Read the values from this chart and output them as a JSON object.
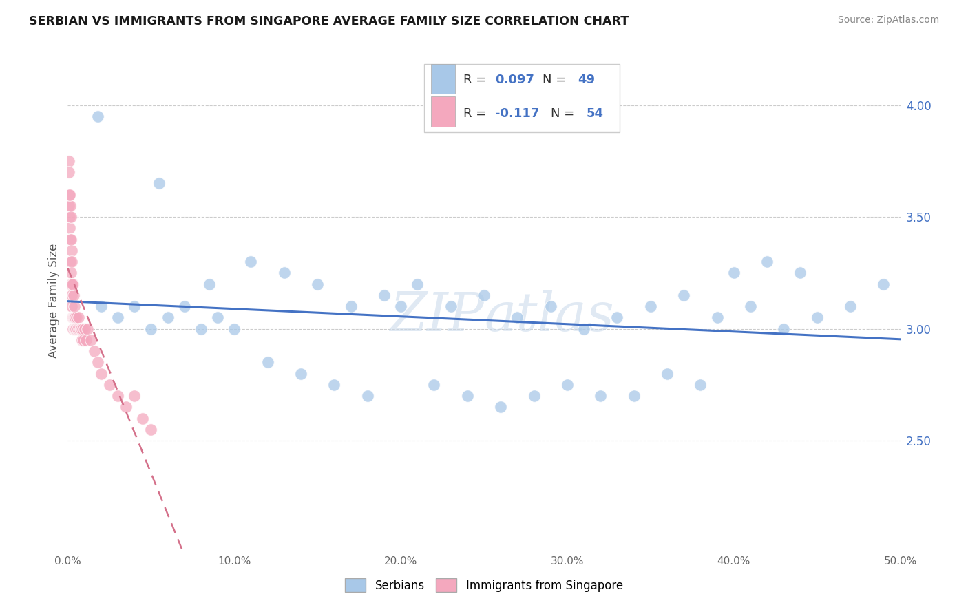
{
  "title": "SERBIAN VS IMMIGRANTS FROM SINGAPORE AVERAGE FAMILY SIZE CORRELATION CHART",
  "source": "Source: ZipAtlas.com",
  "ylabel": "Average Family Size",
  "right_yticks": [
    2.5,
    3.0,
    3.5,
    4.0
  ],
  "xlim": [
    0.0,
    50.0
  ],
  "ylim": [
    2.0,
    4.25
  ],
  "serbians_color": "#a8c8e8",
  "singapore_color": "#f4a8be",
  "trend_serbian_color": "#4472c4",
  "trend_singapore_color": "#d4708a",
  "watermark": "ZIPatlas",
  "serbian_x": [
    1.8,
    5.5,
    8.5,
    11.0,
    13.0,
    15.0,
    17.0,
    19.0,
    21.0,
    23.0,
    25.0,
    27.0,
    29.0,
    31.0,
    33.0,
    35.0,
    37.0,
    39.0,
    41.0,
    43.0,
    45.0,
    47.0,
    49.0,
    2.0,
    3.0,
    4.0,
    5.0,
    6.0,
    7.0,
    8.0,
    9.0,
    10.0,
    12.0,
    14.0,
    16.0,
    18.0,
    20.0,
    22.0,
    24.0,
    26.0,
    28.0,
    30.0,
    32.0,
    34.0,
    36.0,
    38.0,
    40.0,
    42.0,
    44.0
  ],
  "serbian_y": [
    3.95,
    3.65,
    3.2,
    3.3,
    3.25,
    3.2,
    3.1,
    3.15,
    3.2,
    3.1,
    3.15,
    3.05,
    3.1,
    3.0,
    3.05,
    3.1,
    3.15,
    3.05,
    3.1,
    3.0,
    3.05,
    3.1,
    3.2,
    3.1,
    3.05,
    3.1,
    3.0,
    3.05,
    3.1,
    3.0,
    3.05,
    3.0,
    2.85,
    2.8,
    2.75,
    2.7,
    3.1,
    2.75,
    2.7,
    2.65,
    2.7,
    2.75,
    2.7,
    2.7,
    2.8,
    2.75,
    3.25,
    3.3,
    3.25
  ],
  "singapore_x": [
    0.05,
    0.08,
    0.1,
    0.12,
    0.14,
    0.16,
    0.18,
    0.2,
    0.22,
    0.25,
    0.28,
    0.3,
    0.32,
    0.35,
    0.38,
    0.4,
    0.42,
    0.45,
    0.48,
    0.5,
    0.55,
    0.6,
    0.65,
    0.7,
    0.75,
    0.8,
    0.85,
    0.9,
    0.95,
    1.0,
    1.1,
    1.2,
    1.4,
    1.6,
    1.8,
    2.0,
    2.5,
    3.0,
    3.5,
    4.0,
    4.5,
    5.0,
    0.1,
    0.15,
    0.2,
    0.25,
    0.3,
    0.35,
    0.4,
    0.08,
    0.12,
    0.18,
    0.22,
    0.28
  ],
  "singapore_y": [
    3.75,
    3.55,
    3.5,
    3.45,
    3.4,
    3.3,
    3.25,
    3.2,
    3.15,
    3.1,
    3.05,
    3.05,
    3.0,
    3.05,
    3.0,
    3.05,
    3.0,
    3.05,
    3.0,
    3.05,
    3.0,
    3.0,
    3.05,
    3.0,
    3.0,
    3.0,
    2.95,
    3.0,
    2.95,
    3.0,
    2.95,
    3.0,
    2.95,
    2.9,
    2.85,
    2.8,
    2.75,
    2.7,
    2.65,
    2.7,
    2.6,
    2.55,
    3.6,
    3.55,
    3.5,
    3.35,
    3.2,
    3.15,
    3.1,
    3.7,
    3.6,
    3.4,
    3.3,
    3.2
  ]
}
